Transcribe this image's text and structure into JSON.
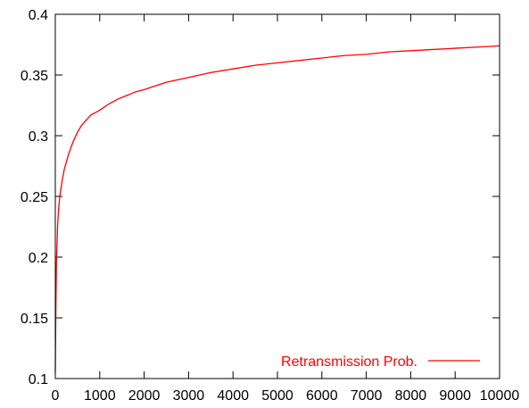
{
  "chart_data": {
    "type": "line",
    "title": "",
    "xlabel": "",
    "ylabel": "",
    "xlim": [
      0,
      10000
    ],
    "ylim": [
      0.1,
      0.4
    ],
    "x_ticks": [
      0,
      1000,
      2000,
      3000,
      4000,
      5000,
      6000,
      7000,
      8000,
      9000,
      10000
    ],
    "x_tick_labels": [
      "0",
      "1000",
      "2000",
      "3000",
      "4000",
      "5000",
      "6000",
      "7000",
      "8000",
      "9000",
      "10000"
    ],
    "y_ticks": [
      0.1,
      0.15,
      0.2,
      0.25,
      0.3,
      0.35,
      0.4
    ],
    "y_tick_labels": [
      "0.1",
      "0.15",
      "0.2",
      "0.25",
      "0.3",
      "0.35",
      "0.4"
    ],
    "grid": false,
    "legend_position": "bottom-right",
    "series": [
      {
        "name": "Retransmission Prob.",
        "color": "#ff0000",
        "x": [
          0,
          10,
          25,
          50,
          75,
          100,
          150,
          200,
          300,
          400,
          500,
          600,
          700,
          800,
          900,
          1000,
          1200,
          1400,
          1600,
          1800,
          2000,
          2500,
          3000,
          3500,
          4000,
          4500,
          5000,
          5500,
          6000,
          6500,
          7000,
          7500,
          8000,
          8500,
          9000,
          9500,
          10000
        ],
        "y": [
          0.105,
          0.15,
          0.195,
          0.225,
          0.24,
          0.25,
          0.262,
          0.272,
          0.285,
          0.295,
          0.303,
          0.309,
          0.313,
          0.317,
          0.319,
          0.321,
          0.326,
          0.33,
          0.333,
          0.336,
          0.338,
          0.344,
          0.348,
          0.352,
          0.355,
          0.358,
          0.36,
          0.362,
          0.364,
          0.366,
          0.367,
          0.369,
          0.37,
          0.371,
          0.372,
          0.373,
          0.374
        ]
      }
    ]
  }
}
